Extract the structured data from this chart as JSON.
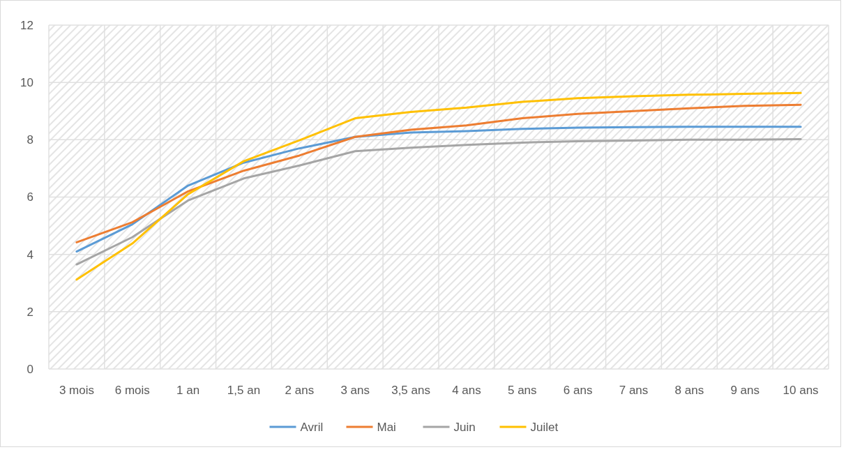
{
  "chart_data": {
    "type": "line",
    "categories": [
      "3 mois",
      "6 mois",
      "1 an",
      "1,5 an",
      "2 ans",
      "3 ans",
      "3,5 ans",
      "4 ans",
      "5 ans",
      "6 ans",
      "7 ans",
      "8 ans",
      "9 ans",
      "10 ans"
    ],
    "series": [
      {
        "name": "Avril",
        "color": "#5b9bd5",
        "values": [
          4.1,
          5.05,
          6.4,
          7.2,
          7.7,
          8.1,
          8.25,
          8.3,
          8.38,
          8.42,
          8.44,
          8.45,
          8.45,
          8.45
        ]
      },
      {
        "name": "Mai",
        "color": "#ed7d31",
        "values": [
          4.42,
          5.12,
          6.2,
          6.92,
          7.45,
          8.1,
          8.35,
          8.5,
          8.75,
          8.9,
          9.0,
          9.1,
          9.18,
          9.22
        ]
      },
      {
        "name": "Juin",
        "color": "#a5a5a5",
        "values": [
          3.65,
          4.6,
          5.88,
          6.65,
          7.1,
          7.6,
          7.72,
          7.82,
          7.9,
          7.95,
          7.97,
          8.0,
          8.0,
          8.02
        ]
      },
      {
        "name": "Juilet",
        "color": "#ffc000",
        "values": [
          3.12,
          4.38,
          6.1,
          7.25,
          7.98,
          8.75,
          8.97,
          9.12,
          9.32,
          9.45,
          9.52,
          9.57,
          9.6,
          9.63
        ]
      }
    ],
    "ylim": [
      0,
      12
    ],
    "yticks": [
      0,
      2,
      4,
      6,
      8,
      10,
      12
    ],
    "grid": true,
    "legend": "bottom",
    "marker": "none",
    "line_style": "solid"
  }
}
